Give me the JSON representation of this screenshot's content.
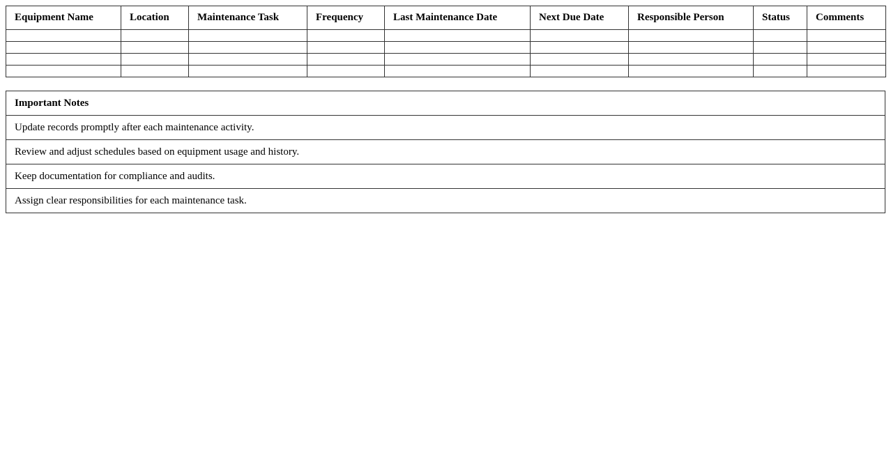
{
  "schedule": {
    "headers": [
      "Equipment Name",
      "Location",
      "Maintenance Task",
      "Frequency",
      "Last Maintenance Date",
      "Next Due Date",
      "Responsible Person",
      "Status",
      "Comments"
    ],
    "rows": [
      [
        "",
        "",
        "",
        "",
        "",
        "",
        "",
        "",
        ""
      ],
      [
        "",
        "",
        "",
        "",
        "",
        "",
        "",
        "",
        ""
      ],
      [
        "",
        "",
        "",
        "",
        "",
        "",
        "",
        "",
        ""
      ],
      [
        "",
        "",
        "",
        "",
        "",
        "",
        "",
        "",
        ""
      ]
    ]
  },
  "notes": {
    "title": "Important Notes",
    "items": [
      "Update records promptly after each maintenance activity.",
      "Review and adjust schedules based on equipment usage and history.",
      "Keep documentation for compliance and audits.",
      "Assign clear responsibilities for each maintenance task."
    ]
  }
}
